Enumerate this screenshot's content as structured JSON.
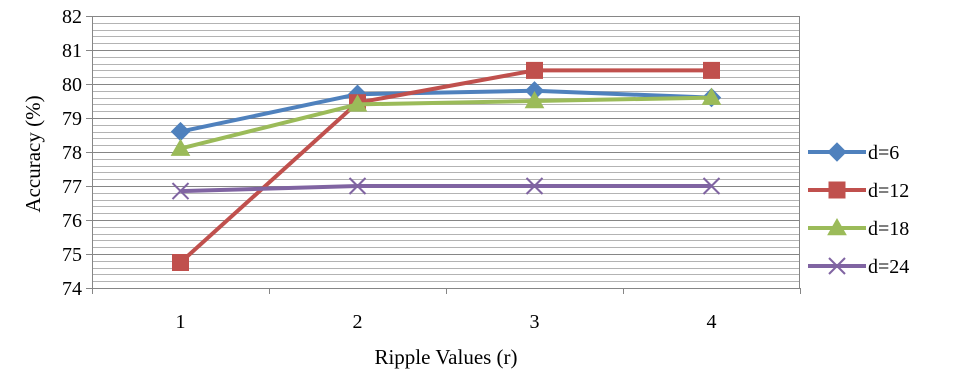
{
  "chart_data": {
    "type": "line",
    "title": "",
    "xlabel": "Ripple Values (r)",
    "ylabel": "Accuracy (%)",
    "categories": [
      "1",
      "2",
      "3",
      "4"
    ],
    "ylim": [
      74,
      82
    ],
    "y_ticks": [
      "74",
      "75",
      "76",
      "77",
      "78",
      "79",
      "80",
      "81",
      "82"
    ],
    "grid": "horizontal major and minor",
    "legend_position": "right",
    "series": [
      {
        "name": "d=6",
        "values": [
          78.6,
          79.7,
          79.8,
          79.6
        ],
        "color": "#4F81BD",
        "marker": "diamond"
      },
      {
        "name": "d=12",
        "values": [
          74.75,
          79.45,
          80.4,
          80.4
        ],
        "color": "#C0504D",
        "marker": "square"
      },
      {
        "name": "d=18",
        "values": [
          78.1,
          79.4,
          79.5,
          79.6
        ],
        "color": "#9BBB59",
        "marker": "triangle"
      },
      {
        "name": "d=24",
        "values": [
          76.85,
          77.0,
          77.0,
          77.0
        ],
        "color": "#8064A2",
        "marker": "x"
      }
    ]
  }
}
